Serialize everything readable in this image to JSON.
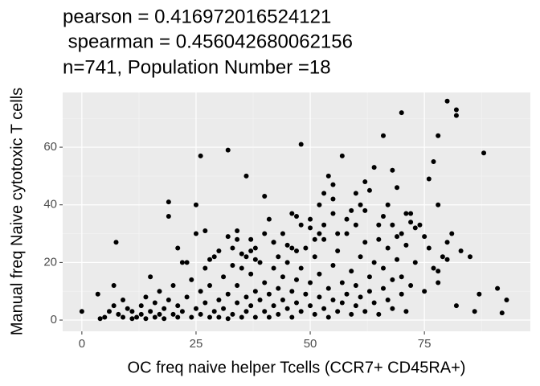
{
  "chart_data": {
    "type": "scatter",
    "title": [
      "pearson = 0.416972016524121",
      " spearman = 0.456042680062156",
      "n=741, Population Number =18"
    ],
    "x_label": "OC freq naive helper Tcells (CCR7+ CD45RA+)",
    "y_label": "Manual freq Naive cytotoxic T cells",
    "color": "#000000",
    "xlim": [
      -4.2,
      98.2
    ],
    "xticks": [
      0,
      25,
      50,
      75
    ],
    "ylim": [
      -3.9,
      79.0
    ],
    "yticks": [
      0,
      20,
      40,
      60
    ],
    "grid": true,
    "x": [
      0,
      7.5,
      19,
      19,
      25,
      26,
      32,
      36,
      48,
      57,
      66,
      70,
      80,
      82,
      82,
      78,
      77,
      88,
      91,
      92,
      93,
      85,
      82,
      86,
      87,
      76,
      78,
      71,
      72,
      69,
      68,
      64,
      62,
      60,
      61,
      59,
      54,
      55,
      52,
      53,
      40,
      41,
      37,
      34,
      33,
      38,
      42,
      45,
      43,
      47,
      46,
      50,
      47,
      55,
      52,
      3.5,
      4,
      5,
      6,
      7,
      7,
      8,
      9,
      9,
      10,
      11,
      11,
      12,
      13,
      13,
      14,
      14,
      15,
      15,
      16,
      16,
      17,
      17,
      18,
      18,
      19,
      20,
      20,
      21,
      21,
      22,
      22,
      23,
      24,
      24,
      25,
      26,
      26,
      27,
      27,
      28,
      28,
      29,
      29,
      30,
      30,
      31,
      31,
      32,
      32,
      33,
      33,
      34,
      34,
      35,
      35,
      36,
      36,
      37,
      37,
      38,
      38,
      39,
      39,
      40,
      40,
      41,
      41,
      42,
      42,
      43,
      43,
      44,
      44,
      45,
      45,
      46,
      46,
      47,
      47,
      48,
      48,
      49,
      49,
      50,
      50,
      51,
      51,
      52,
      52,
      53,
      53,
      54,
      54,
      55,
      55,
      56,
      56,
      57,
      57,
      58,
      58,
      59,
      59,
      60,
      60,
      61,
      61,
      62,
      62,
      63,
      63,
      64,
      64,
      65,
      65,
      66,
      66,
      67,
      67,
      68,
      68,
      69,
      69,
      70,
      70,
      71,
      71,
      72,
      72,
      73,
      74,
      75,
      75,
      76,
      77,
      78,
      79,
      80,
      81,
      83,
      80,
      78,
      21,
      23,
      25,
      27,
      28,
      30,
      32,
      34,
      35,
      36,
      37,
      38,
      40,
      42,
      44,
      46,
      48,
      50,
      51,
      53,
      55,
      56,
      58,
      60,
      62,
      63,
      65,
      66,
      67,
      68,
      70,
      73
    ],
    "values": [
      3,
      27,
      41,
      36,
      40,
      57,
      59,
      50,
      61,
      57,
      64,
      72,
      76,
      73,
      71,
      64,
      55,
      58,
      11,
      2.5,
      7,
      22,
      5,
      3,
      9,
      49,
      40,
      37,
      34,
      46,
      52,
      53,
      48,
      44,
      40,
      38,
      50,
      47,
      40,
      44,
      43,
      35,
      28,
      28,
      25,
      25,
      27,
      26,
      22,
      24,
      37,
      32,
      36,
      37,
      30,
      9,
      0.5,
      1,
      3,
      12,
      5,
      2,
      7,
      1,
      4,
      0.5,
      3,
      1,
      2,
      5,
      0.5,
      8,
      3,
      15,
      1,
      6,
      2,
      10,
      4,
      0.5,
      7,
      2,
      12,
      5,
      1,
      20,
      3,
      8,
      1,
      14,
      4,
      10,
      2,
      18,
      6,
      1,
      12,
      3,
      22,
      7,
      1,
      15,
      4,
      9,
      0.5,
      2,
      19,
      6,
      12,
      1,
      23,
      8,
      3,
      16,
      5,
      10,
      1,
      20,
      7,
      3,
      13,
      9,
      1,
      18,
      5,
      11,
      2,
      15,
      7,
      4,
      20,
      10,
      1,
      14,
      6,
      3,
      18,
      9,
      25,
      5,
      13,
      2,
      22,
      8,
      16,
      4,
      28,
      11,
      1,
      19,
      7,
      3,
      24,
      13,
      6,
      9,
      30,
      2,
      17,
      12,
      5,
      22,
      8,
      3,
      27,
      15,
      10,
      6,
      20,
      2,
      33,
      11,
      18,
      7,
      25,
      14,
      4,
      21,
      29,
      9,
      15,
      3,
      26,
      12,
      37,
      20,
      33,
      10,
      29,
      25,
      18,
      13,
      22,
      27,
      30,
      24,
      21,
      17,
      25,
      20,
      30,
      31,
      21,
      24,
      29,
      31,
      18,
      22,
      24,
      21,
      30,
      27,
      30,
      25,
      33,
      35,
      28,
      33,
      42,
      30,
      35,
      33,
      38,
      45,
      28,
      36,
      40,
      33,
      30,
      32
    ]
  }
}
